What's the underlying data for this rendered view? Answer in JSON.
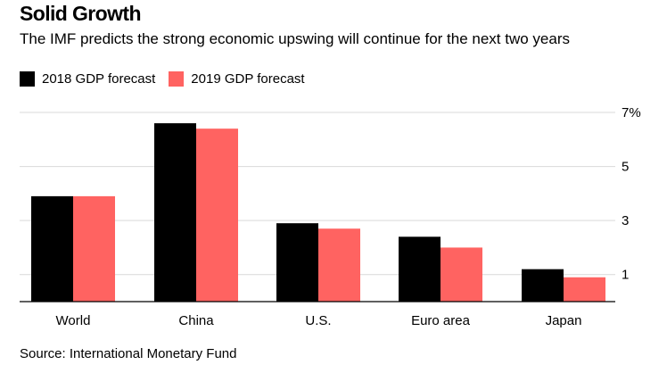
{
  "header": {
    "title": "Solid Growth",
    "subtitle": "The IMF predicts the strong economic upswing will continue for the next two years"
  },
  "colors": {
    "series_2018": "#000000",
    "series_2019": "#ff6361",
    "grid": "#d9d9d9",
    "axis": "#000000"
  },
  "footer": {
    "source": "Source: International Monetary Fund"
  },
  "chart_data": {
    "type": "bar",
    "title": "Solid Growth",
    "subtitle": "The IMF predicts the strong economic upswing will continue for the next two years",
    "categories": [
      "World",
      "China",
      "U.S.",
      "Euro area",
      "Japan"
    ],
    "series": [
      {
        "name": "2018 GDP forecast",
        "color": "#000000",
        "values": [
          3.9,
          6.6,
          2.9,
          2.4,
          1.2
        ]
      },
      {
        "name": "2019 GDP forecast",
        "color": "#ff6361",
        "values": [
          3.9,
          6.4,
          2.7,
          2.0,
          0.9
        ]
      }
    ],
    "ylim": [
      0,
      7
    ],
    "yticks": [
      1,
      3,
      5,
      7
    ],
    "ytick_labels": [
      "1",
      "3",
      "5",
      "7%"
    ],
    "xlabel": "",
    "ylabel": "",
    "grid": true,
    "legend_position": "top-left",
    "y_axis_side": "right"
  }
}
